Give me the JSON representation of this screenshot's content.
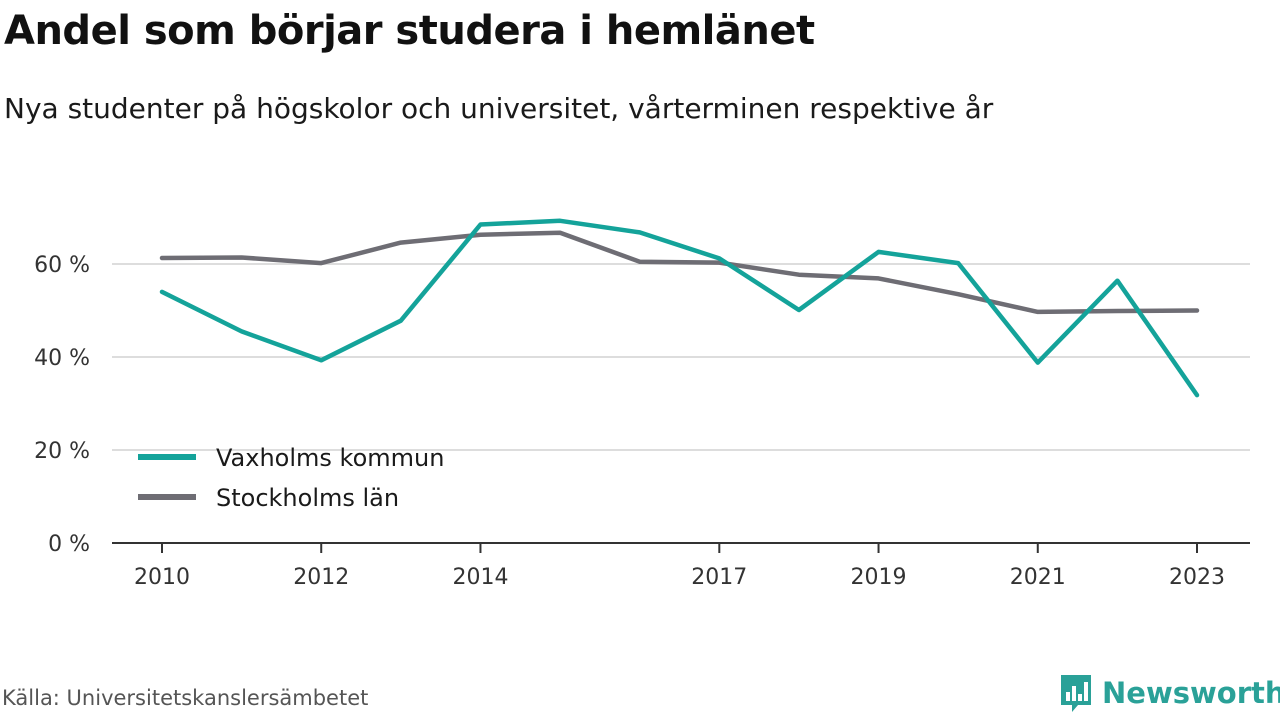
{
  "title": "Andel som börjar studera i hemlänet",
  "subtitle": "Nya studenter på högskolor och universitet, vårterminen respektive år",
  "source": "Källa: Universitetskanslersämbetet",
  "brand": {
    "name": "Newsworthy",
    "icon": "newsworthy-logo-icon",
    "color": "#2aa198"
  },
  "chart_data": {
    "type": "line",
    "title": "Andel som börjar studera i hemlänet",
    "subtitle": "Nya studenter på högskolor och universitet, vårterminen respektive år",
    "x": [
      2010,
      2011,
      2012,
      2013,
      2014,
      2015,
      2016,
      2017,
      2018,
      2019,
      2020,
      2021,
      2022,
      2023
    ],
    "x_ticks": [
      "2010",
      "2012",
      "2014",
      "2017",
      "2019",
      "2021",
      "2023"
    ],
    "y_ticks": [
      "0 %",
      "20 %",
      "40 %",
      "60 %"
    ],
    "ylim": [
      0,
      70
    ],
    "grid": true,
    "legend_position": "bottom-left",
    "series": [
      {
        "name": "Vaxholms kommun",
        "color": "#14a39a",
        "values": [
          54,
          45.5,
          39.3,
          47.8,
          68.5,
          69.3,
          66.8,
          61.2,
          50.1,
          62.6,
          60.2,
          38.8,
          56.4,
          31.8
        ]
      },
      {
        "name": "Stockholms län",
        "color": "#6e6d74",
        "values": [
          61.3,
          61.4,
          60.2,
          64.6,
          66.3,
          66.7,
          60.5,
          60.3,
          57.7,
          56.9,
          53.5,
          49.7,
          49.9,
          50
        ]
      }
    ]
  }
}
